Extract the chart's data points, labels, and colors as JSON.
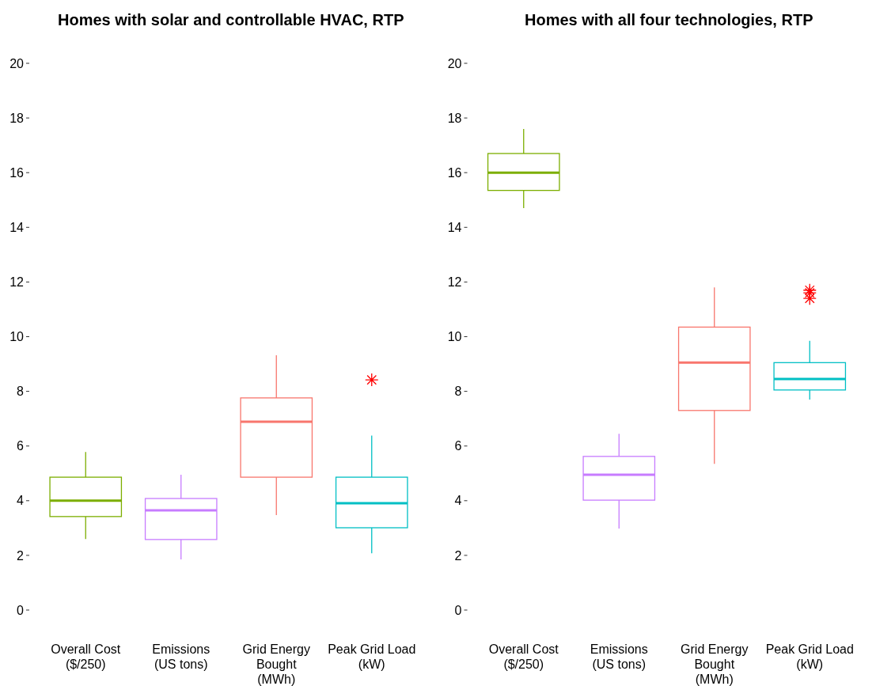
{
  "chart_data": [
    {
      "type": "box",
      "title": "Homes with solar and controllable HVAC, RTP",
      "categories": [
        "Overall Cost\n($/250)",
        "Emissions\n(US tons)",
        "Grid Energy\nBought\n(MWh)",
        "Peak Grid Load\n(kW)"
      ],
      "colors": [
        "#7cae00",
        "#c77cff",
        "#f8766d",
        "#00bfc4"
      ],
      "boxes": [
        {
          "low": 2.6,
          "q1": 3.42,
          "median": 4.0,
          "q3": 4.86,
          "high": 5.78
        },
        {
          "low": 1.85,
          "q1": 2.58,
          "median": 3.65,
          "q3": 4.08,
          "high": 4.95
        },
        {
          "low": 3.47,
          "q1": 4.86,
          "median": 6.89,
          "q3": 7.76,
          "high": 9.32
        },
        {
          "low": 2.08,
          "q1": 3.01,
          "median": 3.91,
          "q3": 4.86,
          "high": 6.38,
          "outliers": [
            8.42
          ]
        }
      ],
      "ylim": [
        0,
        20
      ],
      "yticks": [
        0,
        2,
        4,
        6,
        8,
        10,
        12,
        14,
        16,
        18,
        20
      ]
    },
    {
      "type": "box",
      "title": "Homes with all four technologies, RTP",
      "categories": [
        "Overall Cost\n($/250)",
        "Emissions\n(US tons)",
        "Grid Energy\nBought\n(MWh)",
        "Peak Grid Load\n(kW)"
      ],
      "colors": [
        "#7cae00",
        "#c77cff",
        "#f8766d",
        "#00bfc4"
      ],
      "boxes": [
        {
          "low": 14.7,
          "q1": 15.35,
          "median": 16.0,
          "q3": 16.7,
          "high": 17.6
        },
        {
          "low": 2.98,
          "q1": 4.02,
          "median": 4.95,
          "q3": 5.62,
          "high": 6.45
        },
        {
          "low": 5.35,
          "q1": 7.3,
          "median": 9.05,
          "q3": 10.35,
          "high": 11.8
        },
        {
          "low": 7.7,
          "q1": 8.05,
          "median": 8.45,
          "q3": 9.05,
          "high": 9.85,
          "outliers": [
            11.7,
            11.6,
            11.4
          ]
        }
      ],
      "ylim": [
        0,
        20
      ],
      "yticks": [
        0,
        2,
        4,
        6,
        8,
        10,
        12,
        14,
        16,
        18,
        20
      ]
    }
  ]
}
